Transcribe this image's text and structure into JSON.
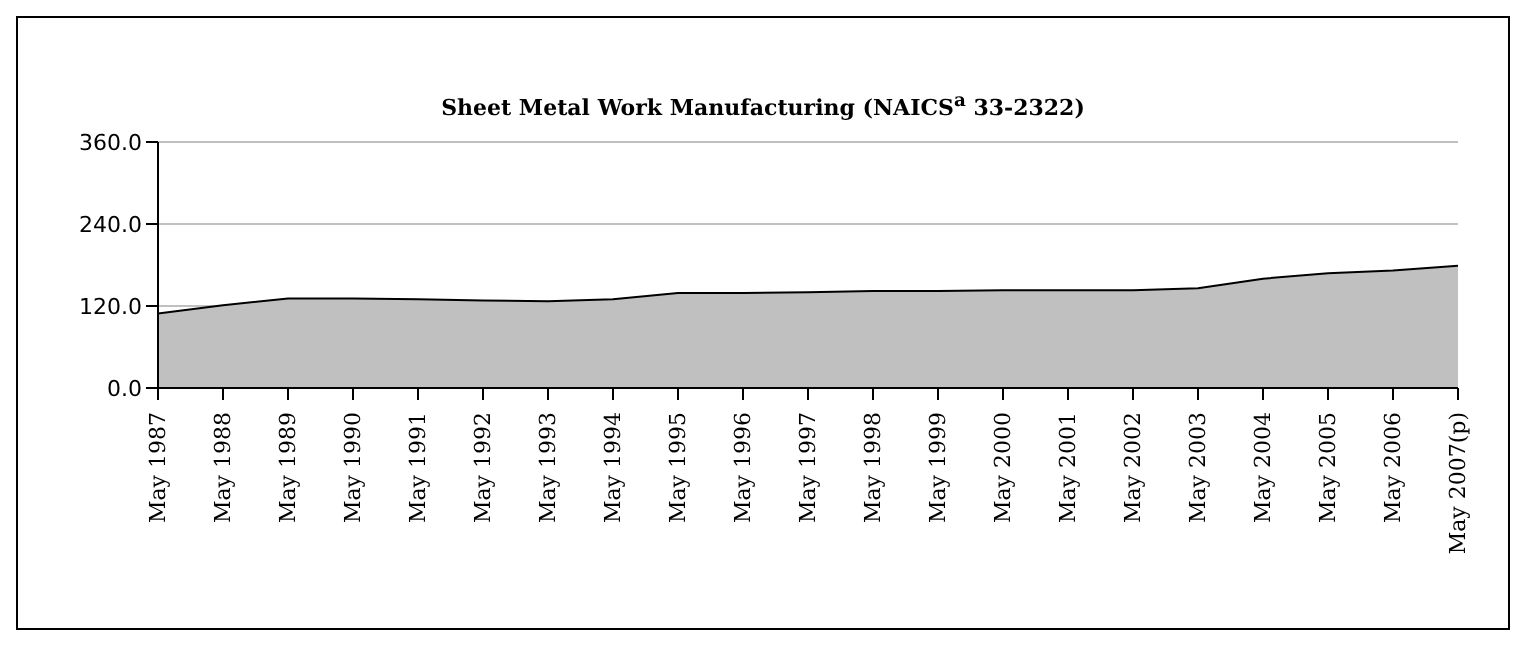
{
  "chart_data": {
    "type": "area",
    "title": "Sheet Metal Work Manufacturing (NAICS$^{a}$ 33-2322)",
    "categories": [
      "May 1987",
      "May 1988",
      "May 1989",
      "May 1990",
      "May 1991",
      "May 1992",
      "May 1993",
      "May 1994",
      "May 1995",
      "May 1996",
      "May 1997",
      "May 1998",
      "May 1999",
      "May 2000",
      "May 2001",
      "May 2002",
      "May 2003",
      "May 2004",
      "May 2005",
      "May 2006",
      "May 2007(p)"
    ],
    "series": [
      {
        "color": "#c0c0c0",
        "values": [
          109,
          121,
          131,
          131,
          130,
          128,
          127,
          130,
          139,
          139,
          140,
          142,
          142,
          143,
          143,
          143,
          146,
          160,
          168,
          172,
          179
        ]
      }
    ],
    "ylim": [
      0,
      360
    ],
    "yticks": [
      {
        "value": 0,
        "label": "0.0"
      },
      {
        "value": 120,
        "label": "120.0"
      },
      {
        "value": 240,
        "label": "240.0"
      },
      {
        "value": 360,
        "label": "360.0"
      }
    ],
    "grid": "y",
    "legend": false
  }
}
